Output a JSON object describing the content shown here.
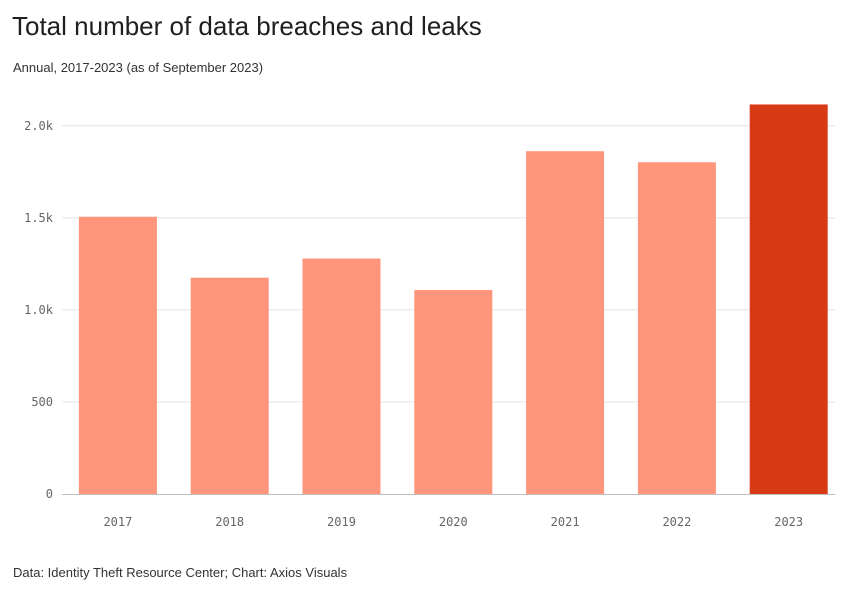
{
  "title": "Total number of data breaches and leaks",
  "subtitle": "Annual, 2017-2023 (as of September 2023)",
  "source": "Data: Identity Theft Resource Center; Chart: Axios Visuals",
  "colors": {
    "bar": "#ff957b",
    "highlight": "#d93a16"
  },
  "chart_data": {
    "type": "bar",
    "categories": [
      "2017",
      "2018",
      "2019",
      "2020",
      "2021",
      "2022",
      "2023"
    ],
    "values": [
      1506,
      1175,
      1279,
      1108,
      1862,
      1802,
      2116
    ],
    "highlight": "2023",
    "title": "Total number of data breaches and leaks",
    "subtitle": "Annual, 2017-2023 (as of September 2023)",
    "xlabel": "",
    "ylabel": "",
    "ylim": [
      0,
      2100
    ],
    "yticks": [
      {
        "value": 0,
        "label": "0"
      },
      {
        "value": 500,
        "label": "500"
      },
      {
        "value": 1000,
        "label": "1.0k"
      },
      {
        "value": 1500,
        "label": "1.5k"
      },
      {
        "value": 2000,
        "label": "2.0k"
      }
    ],
    "grid": true,
    "legend": "none"
  }
}
